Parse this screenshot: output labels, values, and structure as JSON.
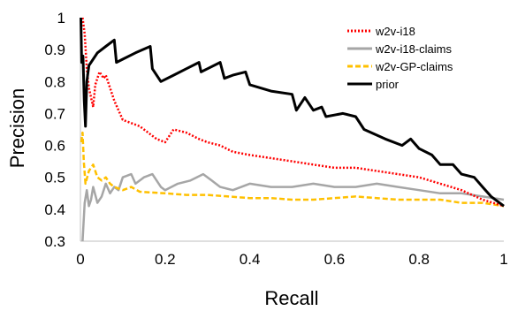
{
  "chart_data": {
    "type": "line",
    "xlabel": "Recall",
    "ylabel": "Precision",
    "xlim": [
      0,
      1
    ],
    "ylim": [
      0.3,
      1
    ],
    "x_ticks": [
      "0",
      "0.2",
      "0.4",
      "0.6",
      "0.8",
      "1"
    ],
    "x_tick_values": [
      0,
      0.2,
      0.4,
      0.6,
      0.8,
      1
    ],
    "y_ticks": [
      "0.3",
      "0.4",
      "0.5",
      "0.6",
      "0.7",
      "0.8",
      "0.9",
      "1"
    ],
    "y_tick_values": [
      0.3,
      0.4,
      0.5,
      0.6,
      0.7,
      0.8,
      0.9,
      1
    ],
    "grid": false,
    "legend_position": "top-right",
    "series": [
      {
        "name": "w2v-i18",
        "color": "#ff0000",
        "dash": "dotted",
        "points": [
          [
            0.005,
            1.0
          ],
          [
            0.01,
            0.95
          ],
          [
            0.015,
            0.84
          ],
          [
            0.02,
            0.78
          ],
          [
            0.03,
            0.72
          ],
          [
            0.035,
            0.79
          ],
          [
            0.045,
            0.83
          ],
          [
            0.055,
            0.81
          ],
          [
            0.06,
            0.82
          ],
          [
            0.07,
            0.78
          ],
          [
            0.08,
            0.74
          ],
          [
            0.09,
            0.71
          ],
          [
            0.1,
            0.68
          ],
          [
            0.12,
            0.67
          ],
          [
            0.14,
            0.66
          ],
          [
            0.16,
            0.64
          ],
          [
            0.18,
            0.62
          ],
          [
            0.2,
            0.61
          ],
          [
            0.22,
            0.65
          ],
          [
            0.25,
            0.64
          ],
          [
            0.28,
            0.62
          ],
          [
            0.3,
            0.61
          ],
          [
            0.33,
            0.6
          ],
          [
            0.36,
            0.58
          ],
          [
            0.4,
            0.57
          ],
          [
            0.45,
            0.56
          ],
          [
            0.5,
            0.55
          ],
          [
            0.55,
            0.54
          ],
          [
            0.6,
            0.53
          ],
          [
            0.65,
            0.53
          ],
          [
            0.7,
            0.52
          ],
          [
            0.75,
            0.51
          ],
          [
            0.8,
            0.5
          ],
          [
            0.85,
            0.48
          ],
          [
            0.9,
            0.46
          ],
          [
            0.95,
            0.43
          ],
          [
            1.0,
            0.41
          ]
        ]
      },
      {
        "name": "w2v-i18-claims",
        "color": "#a6a6a6",
        "dash": "solid",
        "points": [
          [
            0.005,
            0.3
          ],
          [
            0.01,
            0.42
          ],
          [
            0.015,
            0.46
          ],
          [
            0.02,
            0.41
          ],
          [
            0.025,
            0.43
          ],
          [
            0.03,
            0.47
          ],
          [
            0.04,
            0.42
          ],
          [
            0.05,
            0.44
          ],
          [
            0.06,
            0.48
          ],
          [
            0.07,
            0.45
          ],
          [
            0.08,
            0.47
          ],
          [
            0.09,
            0.46
          ],
          [
            0.1,
            0.5
          ],
          [
            0.12,
            0.51
          ],
          [
            0.13,
            0.48
          ],
          [
            0.15,
            0.5
          ],
          [
            0.17,
            0.51
          ],
          [
            0.19,
            0.47
          ],
          [
            0.2,
            0.46
          ],
          [
            0.23,
            0.48
          ],
          [
            0.26,
            0.49
          ],
          [
            0.29,
            0.51
          ],
          [
            0.31,
            0.49
          ],
          [
            0.33,
            0.47
          ],
          [
            0.36,
            0.46
          ],
          [
            0.4,
            0.48
          ],
          [
            0.45,
            0.47
          ],
          [
            0.5,
            0.47
          ],
          [
            0.55,
            0.48
          ],
          [
            0.6,
            0.47
          ],
          [
            0.65,
            0.47
          ],
          [
            0.7,
            0.48
          ],
          [
            0.75,
            0.47
          ],
          [
            0.8,
            0.46
          ],
          [
            0.85,
            0.45
          ],
          [
            0.9,
            0.45
          ],
          [
            0.95,
            0.44
          ],
          [
            1.0,
            0.43
          ]
        ]
      },
      {
        "name": "w2v-GP-claims",
        "color": "#ffc000",
        "dash": "dashed",
        "points": [
          [
            0.002,
            0.61
          ],
          [
            0.005,
            0.64
          ],
          [
            0.008,
            0.55
          ],
          [
            0.012,
            0.48
          ],
          [
            0.02,
            0.52
          ],
          [
            0.03,
            0.54
          ],
          [
            0.04,
            0.5
          ],
          [
            0.05,
            0.49
          ],
          [
            0.06,
            0.5
          ],
          [
            0.07,
            0.48
          ],
          [
            0.08,
            0.47
          ],
          [
            0.1,
            0.46
          ],
          [
            0.12,
            0.47
          ],
          [
            0.14,
            0.455
          ],
          [
            0.2,
            0.45
          ],
          [
            0.25,
            0.445
          ],
          [
            0.3,
            0.445
          ],
          [
            0.35,
            0.44
          ],
          [
            0.4,
            0.435
          ],
          [
            0.45,
            0.435
          ],
          [
            0.5,
            0.43
          ],
          [
            0.55,
            0.43
          ],
          [
            0.6,
            0.435
          ],
          [
            0.65,
            0.44
          ],
          [
            0.7,
            0.435
          ],
          [
            0.75,
            0.43
          ],
          [
            0.8,
            0.43
          ],
          [
            0.85,
            0.43
          ],
          [
            0.9,
            0.42
          ],
          [
            0.95,
            0.42
          ],
          [
            1.0,
            0.41
          ]
        ]
      },
      {
        "name": "prior",
        "color": "#000000",
        "dash": "solid",
        "points": [
          [
            0.001,
            1.0
          ],
          [
            0.003,
            0.86
          ],
          [
            0.006,
            0.88
          ],
          [
            0.009,
            0.74
          ],
          [
            0.012,
            0.66
          ],
          [
            0.015,
            0.8
          ],
          [
            0.02,
            0.85
          ],
          [
            0.03,
            0.87
          ],
          [
            0.04,
            0.89
          ],
          [
            0.06,
            0.91
          ],
          [
            0.08,
            0.93
          ],
          [
            0.085,
            0.86
          ],
          [
            0.1,
            0.87
          ],
          [
            0.13,
            0.89
          ],
          [
            0.165,
            0.91
          ],
          [
            0.17,
            0.84
          ],
          [
            0.19,
            0.8
          ],
          [
            0.22,
            0.82
          ],
          [
            0.25,
            0.84
          ],
          [
            0.28,
            0.86
          ],
          [
            0.285,
            0.83
          ],
          [
            0.3,
            0.84
          ],
          [
            0.33,
            0.86
          ],
          [
            0.34,
            0.81
          ],
          [
            0.36,
            0.82
          ],
          [
            0.39,
            0.83
          ],
          [
            0.4,
            0.79
          ],
          [
            0.45,
            0.77
          ],
          [
            0.5,
            0.76
          ],
          [
            0.51,
            0.71
          ],
          [
            0.53,
            0.75
          ],
          [
            0.55,
            0.71
          ],
          [
            0.57,
            0.72
          ],
          [
            0.58,
            0.69
          ],
          [
            0.62,
            0.7
          ],
          [
            0.65,
            0.69
          ],
          [
            0.67,
            0.65
          ],
          [
            0.72,
            0.62
          ],
          [
            0.76,
            0.6
          ],
          [
            0.78,
            0.62
          ],
          [
            0.8,
            0.59
          ],
          [
            0.83,
            0.57
          ],
          [
            0.85,
            0.54
          ],
          [
            0.88,
            0.54
          ],
          [
            0.9,
            0.51
          ],
          [
            0.93,
            0.5
          ],
          [
            0.95,
            0.47
          ],
          [
            0.97,
            0.44
          ],
          [
            1.0,
            0.41
          ]
        ]
      }
    ]
  }
}
